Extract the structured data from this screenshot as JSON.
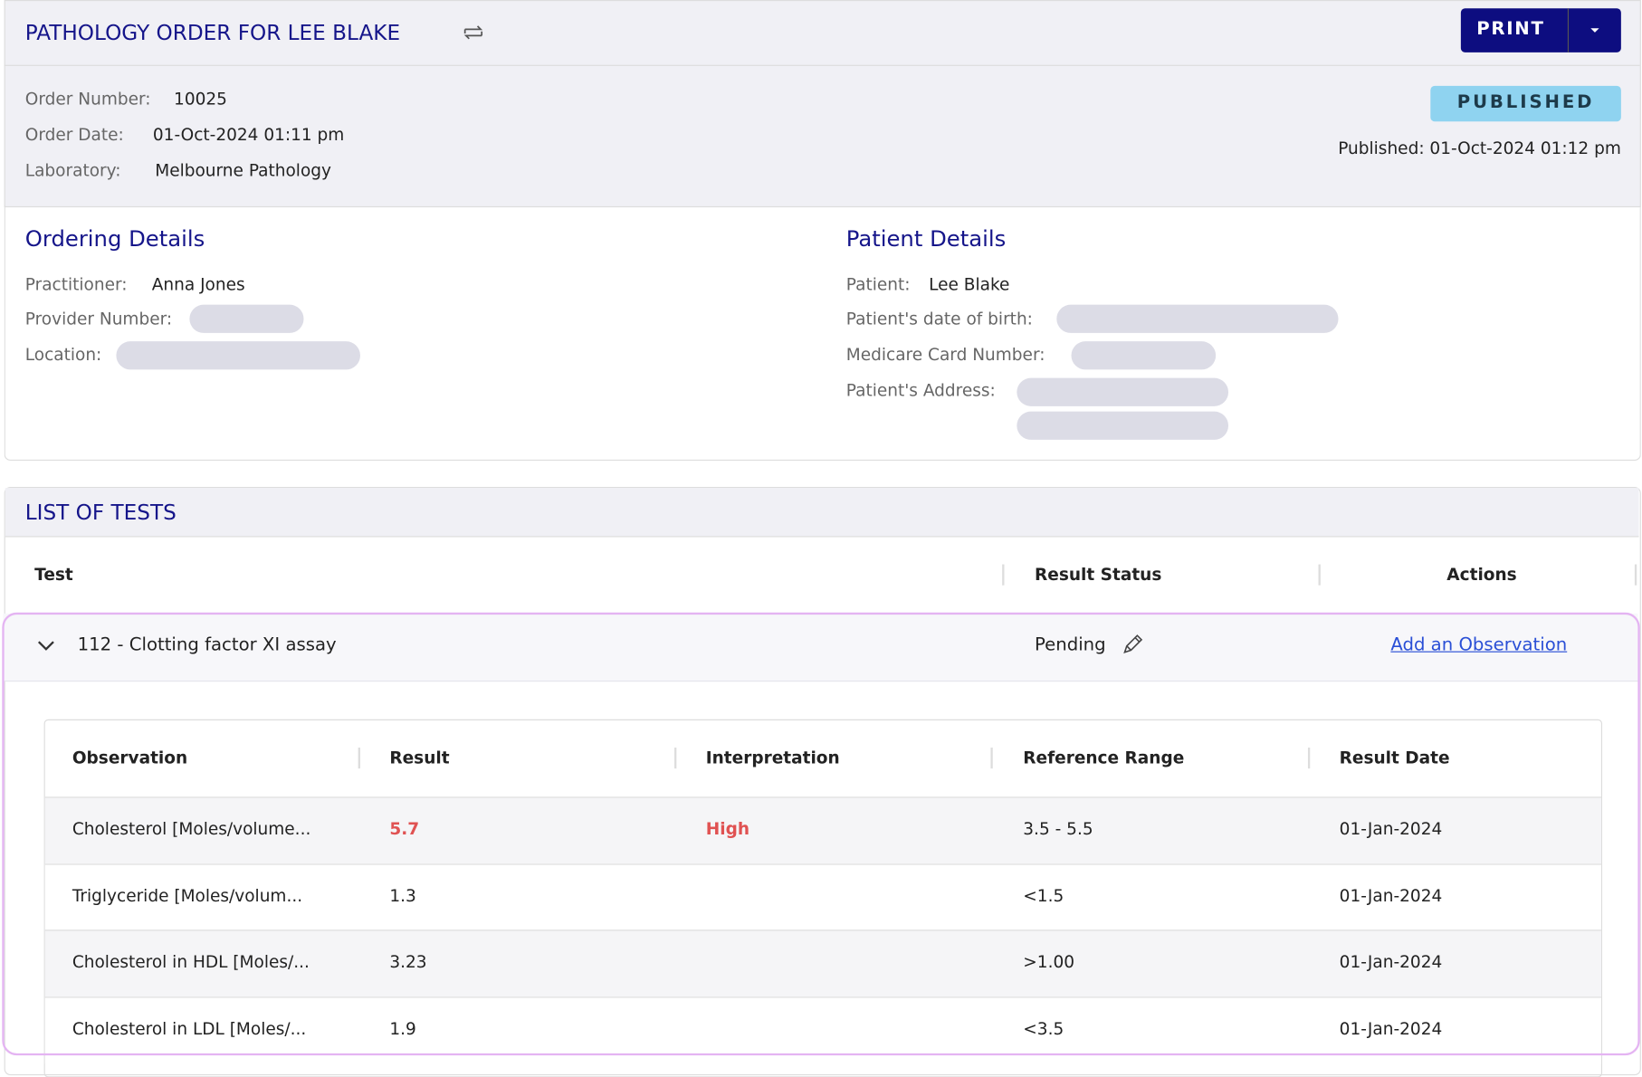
{
  "header": {
    "title": "PATHOLOGY ORDER FOR LEE BLAKE",
    "print_button": "PRINT"
  },
  "order": {
    "fields": [
      {
        "label": "Order Number:",
        "value": "10025"
      },
      {
        "label": "Order Date:",
        "value": "01-Oct-2024 01:11 pm"
      },
      {
        "label": "Laboratory:",
        "value": "Melbourne Pathology"
      }
    ],
    "status": "PUBLISHED",
    "published": "Published: 01-Oct-2024 01:12 pm"
  },
  "ordering_details": {
    "title": "Ordering Details",
    "fields": [
      {
        "label": "Practitioner:",
        "value": "Anna Jones"
      },
      {
        "label": "Provider Number:"
      },
      {
        "label": "Location:"
      }
    ]
  },
  "patient_details": {
    "title": "Patient Details",
    "fields": [
      {
        "label": "Patient:",
        "value": "Lee Blake"
      },
      {
        "label": "Patient's date of birth:"
      },
      {
        "label": "Medicare Card Number:"
      },
      {
        "label": "Patient's Address:"
      }
    ]
  },
  "tests": {
    "title": "LIST OF TESTS",
    "columns": [
      "Test",
      "Result Status",
      "Actions"
    ],
    "rows": [
      {
        "name": "112 - Clotting factor XI assay",
        "status": "Pending",
        "action": "Add an Observation",
        "observations": {
          "columns": [
            "Observation",
            "Result",
            "Interpretation",
            "Reference Range",
            "Result Date"
          ],
          "rows": [
            {
              "observation": "Cholesterol [Moles/volume...",
              "result": "5.7",
              "interpretation": "High",
              "reference_range": "3.5 - 5.5",
              "result_date": "01-Jan-2024"
            },
            {
              "observation": "Triglyceride [Moles/volum...",
              "result": "1.3",
              "reference_range": "<1.5",
              "result_date": "01-Jan-2024"
            },
            {
              "observation": "Cholesterol in HDL [Moles/...",
              "result": "3.23",
              "reference_range": ">1.00",
              "result_date": "01-Jan-2024"
            },
            {
              "observation": "Cholesterol in LDL [Moles/...",
              "result": "1.9",
              "reference_range": "<3.5",
              "result_date": "01-Jan-2024"
            }
          ]
        }
      }
    ]
  }
}
